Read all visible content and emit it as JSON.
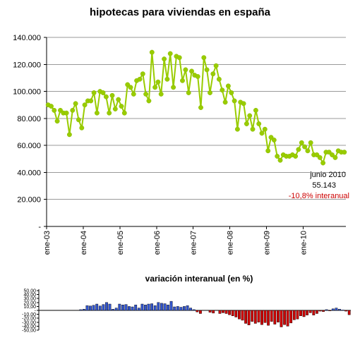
{
  "chart_data": [
    {
      "type": "line",
      "title": "hipotecas para viviendas en españa",
      "ylim": [
        0,
        140000
      ],
      "yticks": [
        "-",
        "20.000",
        "40.000",
        "60.000",
        "80.000",
        "100.000",
        "120.000",
        "140.000"
      ],
      "xticks": [
        "ene-03",
        "ene-04",
        "ene-05",
        "ene-06",
        "ene-07",
        "ene-08",
        "ene-09",
        "ene-10"
      ],
      "x_start": "ene-03",
      "x_end": "jun-10",
      "grid": "horizontal",
      "color": "#99cc00",
      "values": [
        90000,
        89000,
        86000,
        78000,
        86000,
        84000,
        84000,
        68000,
        86000,
        91000,
        79000,
        73000,
        90000,
        93000,
        93000,
        99000,
        84000,
        100000,
        99000,
        96000,
        84000,
        97000,
        87000,
        94000,
        89000,
        84000,
        105000,
        103000,
        98000,
        108000,
        109000,
        113000,
        98000,
        93000,
        129000,
        103000,
        107000,
        98000,
        124000,
        109000,
        128000,
        103000,
        126000,
        125000,
        108000,
        116000,
        99000,
        115000,
        112000,
        111000,
        88000,
        125000,
        116000,
        99000,
        113000,
        119000,
        109000,
        101000,
        92000,
        104000,
        99000,
        93000,
        72000,
        92000,
        91000,
        76000,
        82000,
        72000,
        86000,
        76000,
        69000,
        72000,
        56000,
        66000,
        64000,
        52000,
        49000,
        53000,
        52000,
        52000,
        53000,
        52000,
        57000,
        62000,
        59000,
        56000,
        62000,
        53000,
        53000,
        51000,
        47000,
        55000,
        55000,
        53000,
        51000,
        56000,
        55000,
        55000
      ],
      "annotation": {
        "date": "junio 2010",
        "value": "55.143",
        "change": "-10,8% interanual"
      }
    },
    {
      "type": "bar",
      "title": "variación interanual (en %)",
      "ylim": [
        -50,
        50
      ],
      "yticks": [
        "50,00",
        "40,00",
        "30,00",
        "20,00",
        "10,00",
        "-",
        "-10,00",
        "-20,00",
        "-30,00",
        "-40,00",
        "-50,00"
      ],
      "positive_color": "#3355cc",
      "negative_color": "#cc0000",
      "values": [
        2,
        3,
        12,
        11,
        13,
        16,
        11,
        15,
        20,
        16,
        3,
        6,
        16,
        14,
        15,
        10,
        9,
        14,
        6,
        16,
        14,
        16,
        17,
        12,
        20,
        18,
        17,
        14,
        23,
        9,
        10,
        8,
        10,
        12,
        6,
        2,
        -4,
        -8,
        null,
        null,
        -5,
        -7,
        null,
        -8,
        -6,
        -8,
        -11,
        -14,
        -17,
        -22,
        -25,
        -33,
        -37,
        -28,
        -33,
        -30,
        -36,
        -31,
        -38,
        -28,
        -35,
        -30,
        -42,
        -36,
        -40,
        -32,
        -24,
        -22,
        -14,
        -16,
        -12,
        -6,
        -12,
        -8,
        -2,
        -3,
        2,
        -1,
        4,
        6,
        3,
        1,
        -2,
        -11
      ]
    }
  ]
}
